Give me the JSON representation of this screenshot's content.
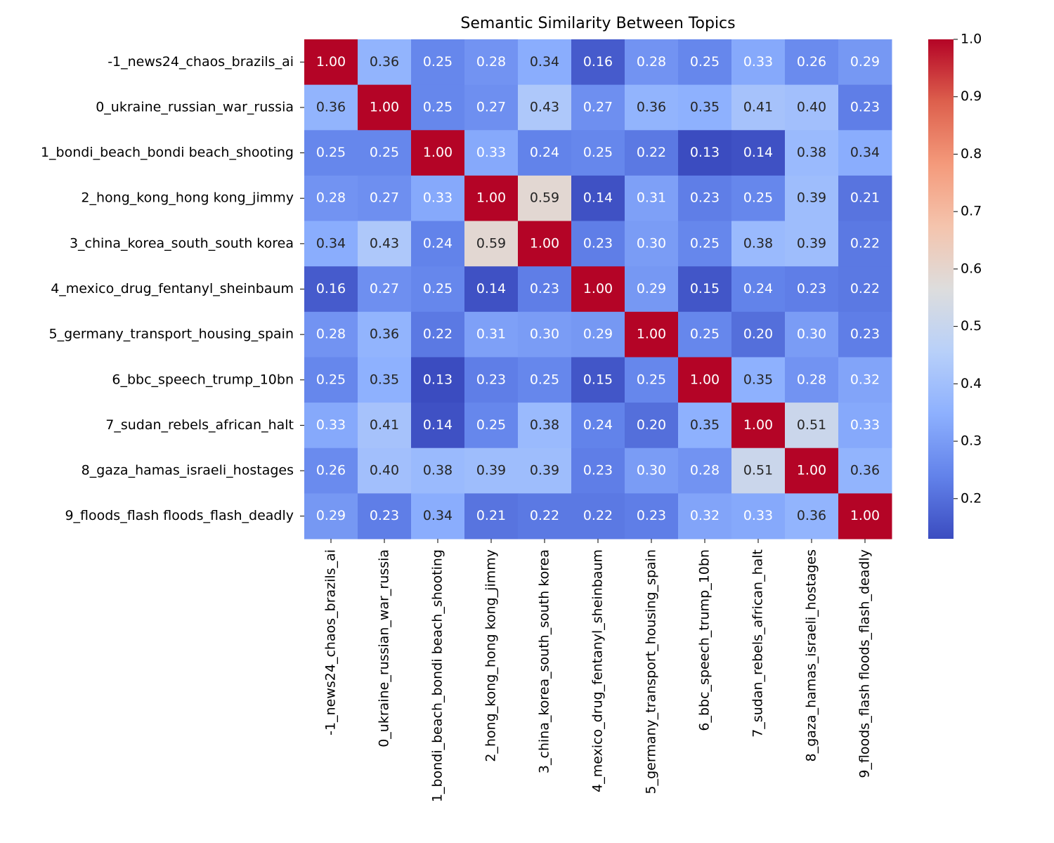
{
  "chart_data": {
    "type": "heatmap",
    "title": "Semantic Similarity Between Topics",
    "categories": [
      "-1_news24_chaos_brazils_ai",
      "0_ukraine_russian_war_russia",
      "1_bondi_beach_bondi beach_shooting",
      "2_hong_kong_hong kong_jimmy",
      "3_china_korea_south_south korea",
      "4_mexico_drug_fentanyl_sheinbaum",
      "5_germany_transport_housing_spain",
      "6_bbc_speech_trump_10bn",
      "7_sudan_rebels_african_halt",
      "8_gaza_hamas_israeli_hostages",
      "9_floods_flash floods_flash_deadly"
    ],
    "values": [
      [
        1.0,
        0.36,
        0.25,
        0.28,
        0.34,
        0.16,
        0.28,
        0.25,
        0.33,
        0.26,
        0.29
      ],
      [
        0.36,
        1.0,
        0.25,
        0.27,
        0.43,
        0.27,
        0.36,
        0.35,
        0.41,
        0.4,
        0.23
      ],
      [
        0.25,
        0.25,
        1.0,
        0.33,
        0.24,
        0.25,
        0.22,
        0.13,
        0.14,
        0.38,
        0.34
      ],
      [
        0.28,
        0.27,
        0.33,
        1.0,
        0.59,
        0.14,
        0.31,
        0.23,
        0.25,
        0.39,
        0.21
      ],
      [
        0.34,
        0.43,
        0.24,
        0.59,
        1.0,
        0.23,
        0.3,
        0.25,
        0.38,
        0.39,
        0.22
      ],
      [
        0.16,
        0.27,
        0.25,
        0.14,
        0.23,
        1.0,
        0.29,
        0.15,
        0.24,
        0.23,
        0.22
      ],
      [
        0.28,
        0.36,
        0.22,
        0.31,
        0.3,
        0.29,
        1.0,
        0.25,
        0.2,
        0.3,
        0.23
      ],
      [
        0.25,
        0.35,
        0.13,
        0.23,
        0.25,
        0.15,
        0.25,
        1.0,
        0.35,
        0.28,
        0.32
      ],
      [
        0.33,
        0.41,
        0.14,
        0.25,
        0.38,
        0.24,
        0.2,
        0.35,
        1.0,
        0.51,
        0.33
      ],
      [
        0.26,
        0.4,
        0.38,
        0.39,
        0.39,
        0.23,
        0.3,
        0.28,
        0.51,
        1.0,
        0.36
      ],
      [
        0.29,
        0.23,
        0.34,
        0.21,
        0.22,
        0.22,
        0.23,
        0.32,
        0.33,
        0.36,
        1.0
      ]
    ],
    "value_labels": [
      [
        "1.00",
        "0.36",
        "0.25",
        "0.28",
        "0.34",
        "0.16",
        "0.28",
        "0.25",
        "0.33",
        "0.26",
        "0.29"
      ],
      [
        "0.36",
        "1.00",
        "0.25",
        "0.27",
        "0.43",
        "0.27",
        "0.36",
        "0.35",
        "0.41",
        "0.40",
        "0.23"
      ],
      [
        "0.25",
        "0.25",
        "1.00",
        "0.33",
        "0.24",
        "0.25",
        "0.22",
        "0.13",
        "0.14",
        "0.38",
        "0.34"
      ],
      [
        "0.28",
        "0.27",
        "0.33",
        "1.00",
        "0.59",
        "0.14",
        "0.31",
        "0.23",
        "0.25",
        "0.39",
        "0.21"
      ],
      [
        "0.34",
        "0.43",
        "0.24",
        "0.59",
        "1.00",
        "0.23",
        "0.30",
        "0.25",
        "0.38",
        "0.39",
        "0.22"
      ],
      [
        "0.16",
        "0.27",
        "0.25",
        "0.14",
        "0.23",
        "1.00",
        "0.29",
        "0.15",
        "0.24",
        "0.23",
        "0.22"
      ],
      [
        "0.28",
        "0.36",
        "0.22",
        "0.31",
        "0.30",
        "0.29",
        "1.00",
        "0.25",
        "0.20",
        "0.30",
        "0.23"
      ],
      [
        "0.25",
        "0.35",
        "0.13",
        "0.23",
        "0.25",
        "0.15",
        "0.25",
        "1.00",
        "0.35",
        "0.28",
        "0.32"
      ],
      [
        "0.33",
        "0.41",
        "0.14",
        "0.25",
        "0.38",
        "0.24",
        "0.20",
        "0.35",
        "1.00",
        "0.51",
        "0.33"
      ],
      [
        "0.26",
        "0.40",
        "0.38",
        "0.39",
        "0.39",
        "0.23",
        "0.30",
        "0.28",
        "0.51",
        "1.00",
        "0.36"
      ],
      [
        "0.29",
        "0.23",
        "0.34",
        "0.21",
        "0.22",
        "0.22",
        "0.23",
        "0.32",
        "0.33",
        "0.36",
        "1.00"
      ]
    ],
    "colormap": "coolwarm",
    "clim": [
      0.13,
      1.0
    ],
    "cticks": [
      0.2,
      0.3,
      0.4,
      0.5,
      0.6,
      0.7,
      0.8,
      0.9,
      {
        "value": 1.0,
        "label": "1.0"
      }
    ]
  }
}
